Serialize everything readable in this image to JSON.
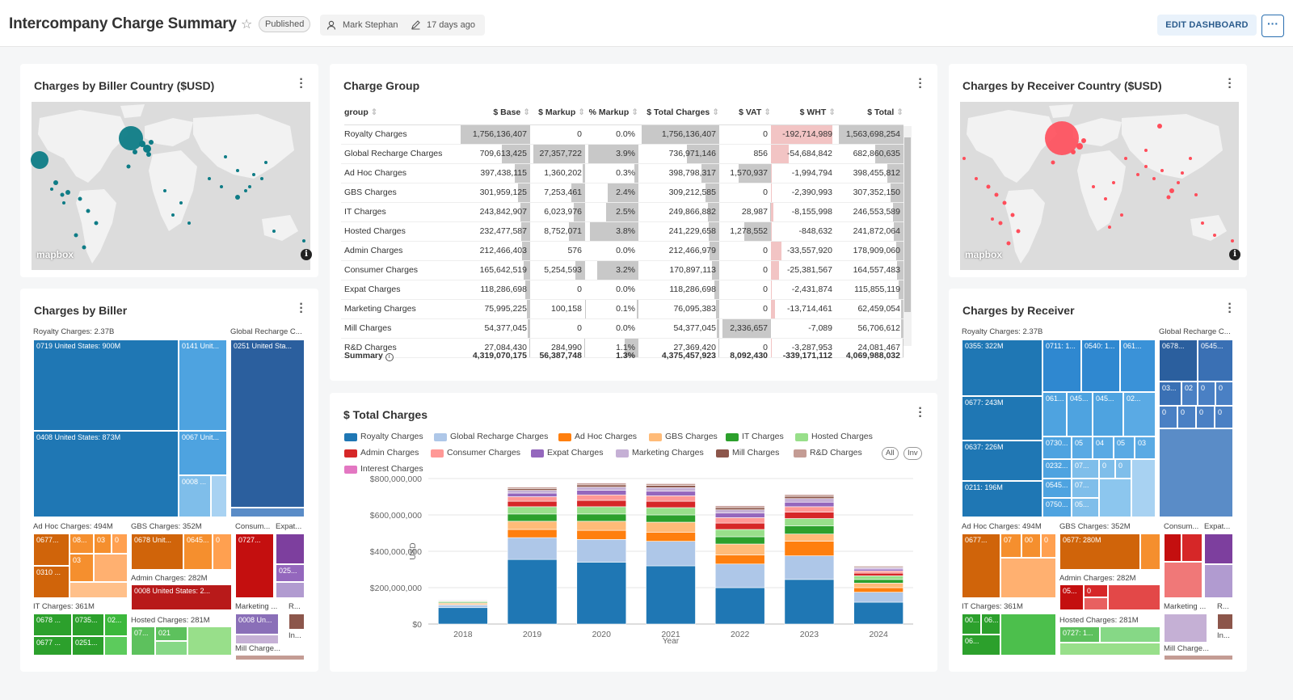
{
  "header": {
    "title": "Intercompany Charge Summary",
    "status": "Published",
    "author": "Mark Stephan",
    "updated": "17 days ago",
    "edit_label": "EDIT DASHBOARD",
    "more_label": "···"
  },
  "map_biller": {
    "title": "Charges by Biller Country ($USD)",
    "logo": "mapbox",
    "info": "i"
  },
  "map_receiver": {
    "title": "Charges by Receiver Country ($USD)",
    "logo": "mapbox",
    "info": "i"
  },
  "charge_group": {
    "title": "Charge Group",
    "columns": [
      "group",
      "$ Base",
      "$ Markup",
      "% Markup",
      "$ Total Charges",
      "$ VAT",
      "$ WHT",
      "$ Total"
    ],
    "rows": [
      {
        "group": "Royalty Charges",
        "base": "1,756,136,407",
        "markup": "0",
        "pct": "0.0%",
        "total_charges": "1,756,136,407",
        "vat": "0",
        "wht": "-192,714,989",
        "total": "1,563,698,254"
      },
      {
        "group": "Global Recharge Charges",
        "base": "709,613,425",
        "markup": "27,357,722",
        "pct": "3.9%",
        "total_charges": "736,971,146",
        "vat": "856",
        "wht": "-54,684,842",
        "total": "682,860,635"
      },
      {
        "group": "Ad Hoc Charges",
        "base": "397,438,115",
        "markup": "1,360,202",
        "pct": "0.3%",
        "total_charges": "398,798,317",
        "vat": "1,570,937",
        "wht": "-1,994,794",
        "total": "398,455,812"
      },
      {
        "group": "GBS Charges",
        "base": "301,959,125",
        "markup": "7,253,461",
        "pct": "2.4%",
        "total_charges": "309,212,585",
        "vat": "0",
        "wht": "-2,390,993",
        "total": "307,352,150"
      },
      {
        "group": "IT Charges",
        "base": "243,842,907",
        "markup": "6,023,976",
        "pct": "2.5%",
        "total_charges": "249,866,882",
        "vat": "28,987",
        "wht": "-8,155,998",
        "total": "246,553,589"
      },
      {
        "group": "Hosted Charges",
        "base": "232,477,587",
        "markup": "8,752,071",
        "pct": "3.8%",
        "total_charges": "241,229,658",
        "vat": "1,278,552",
        "wht": "-848,632",
        "total": "241,872,064"
      },
      {
        "group": "Admin Charges",
        "base": "212,466,403",
        "markup": "576",
        "pct": "0.0%",
        "total_charges": "212,466,979",
        "vat": "0",
        "wht": "-33,557,920",
        "total": "178,909,060"
      },
      {
        "group": "Consumer Charges",
        "base": "165,642,519",
        "markup": "5,254,593",
        "pct": "3.2%",
        "total_charges": "170,897,113",
        "vat": "0",
        "wht": "-25,381,567",
        "total": "164,557,483"
      },
      {
        "group": "Expat Charges",
        "base": "118,286,698",
        "markup": "0",
        "pct": "0.0%",
        "total_charges": "118,286,698",
        "vat": "0",
        "wht": "-2,431,874",
        "total": "115,855,119"
      },
      {
        "group": "Marketing Charges",
        "base": "75,995,225",
        "markup": "100,158",
        "pct": "0.1%",
        "total_charges": "76,095,383",
        "vat": "0",
        "wht": "-13,714,461",
        "total": "62,459,054"
      },
      {
        "group": "Mill Charges",
        "base": "54,377,045",
        "markup": "0",
        "pct": "0.0%",
        "total_charges": "54,377,045",
        "vat": "2,336,657",
        "wht": "-7,089",
        "total": "56,706,612"
      },
      {
        "group": "R&D Charges",
        "base": "27,084,430",
        "markup": "284,990",
        "pct": "1.1%",
        "total_charges": "27,369,420",
        "vat": "0",
        "wht": "-3,287,953",
        "total": "24,081,467"
      }
    ],
    "summary": {
      "label": "Summary",
      "info": "i",
      "base": "4,319,070,175",
      "markup": "56,387,748",
      "pct": "1.3%",
      "total_charges": "4,375,457,923",
      "vat": "8,092,430",
      "wht": "-339,171,112",
      "total": "4,069,988,032"
    }
  },
  "biller_treemap": {
    "title": "Charges by Biller",
    "groups": [
      {
        "label": "Royalty Charges: 2.37B",
        "cells": [
          "0719 United States: 900M",
          "0141 Unit...",
          "0408 United States: 873M",
          "0067 Unit...",
          "0008 ..."
        ]
      },
      {
        "label": "Global Recharge C...",
        "cells": [
          "0251 United Sta..."
        ]
      },
      {
        "label": "Ad Hoc Charges: 494M",
        "cells": [
          "0677...",
          "08...",
          "03",
          "0",
          "03",
          "0310 ..."
        ]
      },
      {
        "label": "GBS Charges: 352M",
        "cells": [
          "0678 Unit...",
          "0645...",
          "0"
        ]
      },
      {
        "label": "Consum...",
        "cells": [
          "0727..."
        ]
      },
      {
        "label": "Expat...",
        "cells": [
          "025..."
        ]
      },
      {
        "label": "Admin Charges: 282M",
        "cells": [
          "0008 United States: 2..."
        ]
      },
      {
        "label": "IT Charges: 361M",
        "cells": [
          "0678 ...",
          "0735...",
          "02...",
          "0677 ...",
          "0251..."
        ]
      },
      {
        "label": "Hosted Charges: 281M",
        "cells": [
          "07...",
          "021"
        ]
      },
      {
        "label": "Marketing ...",
        "cells": [
          "0008 Un..."
        ]
      },
      {
        "label": "R...",
        "cells": []
      },
      {
        "label": "In...",
        "cells": []
      },
      {
        "label": "Mill Charge...",
        "cells": []
      }
    ]
  },
  "receiver_treemap": {
    "title": "Charges by Receiver",
    "groups": [
      {
        "label": "Royalty Charges: 2.37B",
        "cells": [
          "0355: 322M",
          "0711: 1...",
          "0540: 1...",
          "061...",
          "0677: 243M",
          "061...",
          "045...",
          "045...",
          "02...",
          "0637: 226M",
          "0730...",
          "05",
          "04",
          "05",
          "03",
          "0232...",
          "07...",
          "0",
          "0",
          "0211: 196M",
          "0545...",
          "07...",
          "0750...",
          "05..."
        ]
      },
      {
        "label": "Global Recharge C...",
        "cells": [
          "0678...",
          "0545...",
          "03...",
          "02",
          "0",
          "0",
          "0",
          "0",
          "0",
          "0"
        ]
      },
      {
        "label": "Ad Hoc Charges: 494M",
        "cells": [
          "0677...",
          "07",
          "00",
          "0"
        ]
      },
      {
        "label": "GBS Charges: 352M",
        "cells": [
          "0677: 280M"
        ]
      },
      {
        "label": "Consum...",
        "cells": []
      },
      {
        "label": "Expat...",
        "cells": []
      },
      {
        "label": "Admin Charges: 282M",
        "cells": [
          "05...",
          "0"
        ]
      },
      {
        "label": "IT Charges: 361M",
        "cells": [
          "00...",
          "06...",
          "06..."
        ]
      },
      {
        "label": "Hosted Charges: 281M",
        "cells": [
          "0727: 1..."
        ]
      },
      {
        "label": "Marketing ...",
        "cells": []
      },
      {
        "label": "R...",
        "cells": []
      },
      {
        "label": "In...",
        "cells": []
      },
      {
        "label": "Mill Charge...",
        "cells": []
      }
    ]
  },
  "total_chart": {
    "title": "$ Total Charges",
    "pill_all": "All",
    "pill_inv": "Inv",
    "legend": [
      {
        "name": "Royalty Charges",
        "color": "#1f77b4"
      },
      {
        "name": "Global Recharge Charges",
        "color": "#aec7e8"
      },
      {
        "name": "Ad Hoc Charges",
        "color": "#ff7f0e"
      },
      {
        "name": "GBS Charges",
        "color": "#ffbb78"
      },
      {
        "name": "IT Charges",
        "color": "#2ca02c"
      },
      {
        "name": "Hosted Charges",
        "color": "#98df8a"
      },
      {
        "name": "Admin Charges",
        "color": "#d62728"
      },
      {
        "name": "Consumer Charges",
        "color": "#ff9896"
      },
      {
        "name": "Expat Charges",
        "color": "#9467bd"
      },
      {
        "name": "Marketing Charges",
        "color": "#c5b0d5"
      },
      {
        "name": "Mill Charges",
        "color": "#8c564b"
      },
      {
        "name": "R&D Charges",
        "color": "#c49c94"
      },
      {
        "name": "Interest Charges",
        "color": "#e377c2"
      }
    ]
  },
  "chart_data": {
    "type": "bar",
    "stacked": true,
    "title": "$ Total Charges",
    "xlabel": "Year",
    "ylabel": "USD",
    "categories": [
      "2018",
      "2019",
      "2020",
      "2021",
      "2022",
      "2023",
      "2024"
    ],
    "ylim": [
      0,
      800000000
    ],
    "yticks": [
      "$0",
      "$200,000,000",
      "$400,000,000",
      "$600,000,000",
      "$800,000,000"
    ],
    "yticks_values": [
      0,
      200000000,
      400000000,
      600000000,
      800000000
    ],
    "grid": true,
    "legend_position": "top",
    "series": [
      {
        "name": "Royalty Charges",
        "values": [
          90,
          355,
          340,
          320,
          200,
          245,
          120
        ]
      },
      {
        "name": "Global Recharge Charges",
        "values": [
          15,
          120,
          125,
          135,
          130,
          130,
          55
        ]
      },
      {
        "name": "Ad Hoc Charges",
        "values": [
          5,
          45,
          50,
          50,
          50,
          80,
          25
        ]
      },
      {
        "name": "GBS Charges",
        "values": [
          5,
          45,
          50,
          55,
          60,
          40,
          25
        ]
      },
      {
        "name": "IT Charges",
        "values": [
          5,
          40,
          40,
          40,
          40,
          45,
          20
        ]
      },
      {
        "name": "Hosted Charges",
        "values": [
          5,
          40,
          40,
          40,
          40,
          40,
          20
        ]
      },
      {
        "name": "Admin Charges",
        "values": [
          3,
          30,
          35,
          35,
          35,
          35,
          15
        ]
      },
      {
        "name": "Consumer Charges",
        "values": [
          3,
          25,
          30,
          30,
          30,
          30,
          12
        ]
      },
      {
        "name": "Expat Charges",
        "values": [
          3,
          20,
          25,
          25,
          25,
          25,
          10
        ]
      },
      {
        "name": "Marketing Charges",
        "values": [
          2,
          15,
          18,
          20,
          18,
          20,
          8
        ]
      },
      {
        "name": "Mill Charges",
        "values": [
          2,
          10,
          12,
          12,
          12,
          12,
          5
        ]
      },
      {
        "name": "R&D Charges",
        "values": [
          1,
          8,
          10,
          10,
          10,
          10,
          4
        ]
      },
      {
        "name": "Interest Charges",
        "values": [
          0,
          2,
          3,
          3,
          3,
          3,
          1
        ]
      }
    ]
  }
}
